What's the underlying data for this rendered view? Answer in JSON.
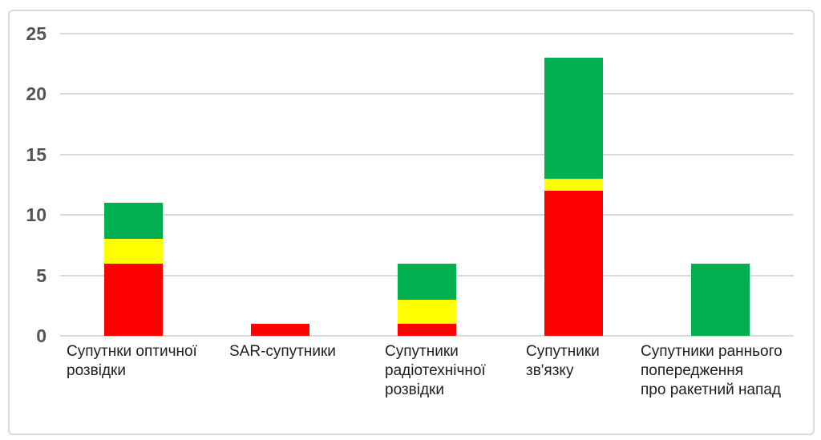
{
  "chart_data": {
    "type": "bar",
    "stacked": true,
    "title": "",
    "xlabel": "",
    "ylabel": "",
    "legend": false,
    "grid": true,
    "ylim": [
      0,
      25
    ],
    "yticks": [
      0,
      5,
      10,
      15,
      20,
      25
    ],
    "categories": [
      "Супутнки оптичної розвідки",
      "SAR-супутники",
      "Супутники радіотехнічної розвідки",
      "Супутники зв'язку",
      "Супутники раннього попередження про ракетний напад"
    ],
    "category_label_lines": [
      [
        "Супутнки оптичної",
        "розвідки"
      ],
      [
        "SAR-супутники"
      ],
      [
        "Супутники",
        "радіотехнічної",
        "розвідки"
      ],
      [
        "Супутники",
        "зв'язку"
      ],
      [
        "Супутники раннього",
        "попередження",
        "про ракетний напад"
      ]
    ],
    "series": [
      {
        "name": "red",
        "color": "#FF0000",
        "values": [
          6,
          1,
          1,
          12,
          0
        ]
      },
      {
        "name": "yellow",
        "color": "#FFFF00",
        "values": [
          2,
          0,
          2,
          1,
          0
        ]
      },
      {
        "name": "green",
        "color": "#00B050",
        "values": [
          3,
          0,
          3,
          10,
          6
        ]
      }
    ],
    "totals": [
      11,
      1,
      6,
      23,
      6
    ]
  },
  "colors": {
    "background": "#FFFFFF",
    "frame_border": "#D8D8D8",
    "gridline": "#D9D9D9",
    "tick_label": "#555555",
    "category_label": "#1F1F1F"
  }
}
